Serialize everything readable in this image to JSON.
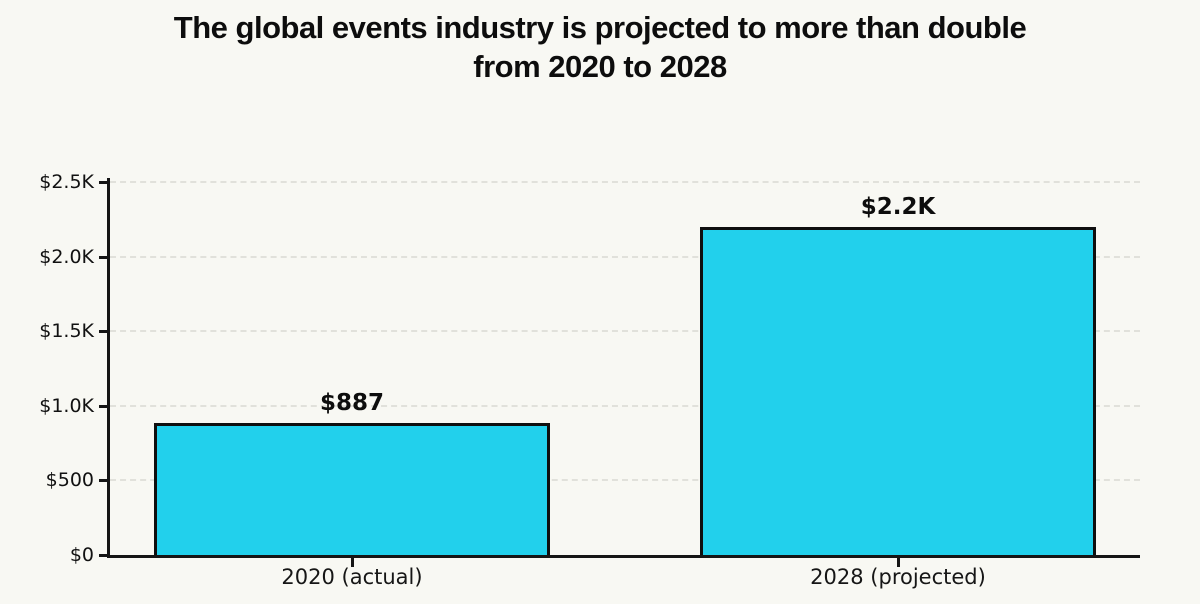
{
  "title": {
    "full": "The global events industry is projected to more than double from 2020 to 2028",
    "lines": [
      "The global events industry is projected to more than double",
      "from 2020 to 2028"
    ]
  },
  "chart_data": {
    "type": "bar",
    "categories": [
      "2020 (actual)",
      "2028 (projected)"
    ],
    "values": [
      887,
      2200
    ],
    "bar_labels": [
      "$887",
      "$2.2K"
    ],
    "title": "The global events industry is projected to more than double from 2020 to 2028",
    "xlabel": "",
    "ylabel": "",
    "ylim": [
      0,
      2500
    ],
    "yticks": [
      {
        "value": 0,
        "label": "$0"
      },
      {
        "value": 500,
        "label": "$500"
      },
      {
        "value": 1000,
        "label": "$1.0K"
      },
      {
        "value": 1500,
        "label": "$1.5K"
      },
      {
        "value": 2000,
        "label": "$2.0K"
      },
      {
        "value": 2500,
        "label": "$2.5K"
      }
    ],
    "grid": "horizontal-dashed",
    "legend": "none",
    "colors": {
      "background": "#f8f8f3",
      "bar_fill": "#22d0ec",
      "bar_border": "#0f0f0f",
      "axis": "#151515",
      "gridline": "#e1e1db",
      "text": "#111111"
    }
  }
}
